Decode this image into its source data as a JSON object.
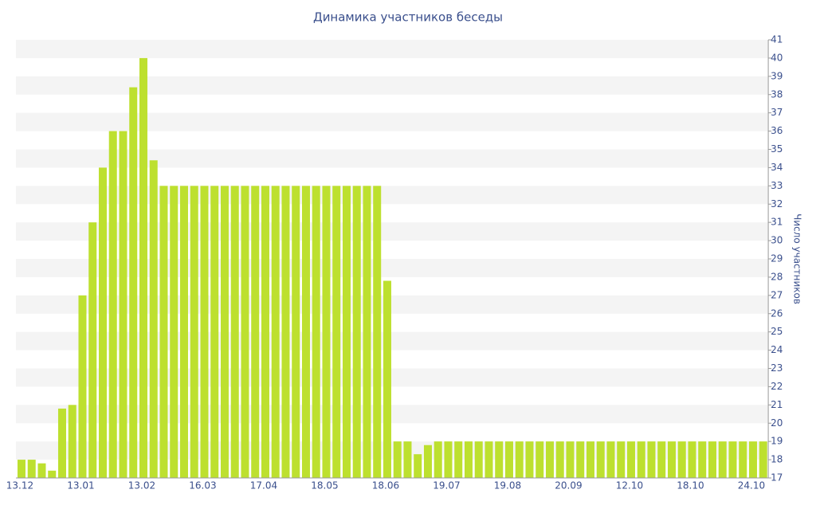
{
  "chart_data": {
    "type": "bar",
    "title": "Динамика участников беседы",
    "y_label": "Число участников",
    "categories": [
      "13.12",
      null,
      null,
      null,
      null,
      null,
      "13.01",
      null,
      null,
      null,
      null,
      null,
      "13.02",
      null,
      null,
      null,
      null,
      null,
      "16.03",
      null,
      null,
      null,
      null,
      null,
      "17.04",
      null,
      null,
      null,
      null,
      null,
      "18.05",
      null,
      null,
      null,
      null,
      null,
      "18.06",
      null,
      null,
      null,
      null,
      null,
      "19.07",
      null,
      null,
      null,
      null,
      null,
      "19.08",
      null,
      null,
      null,
      null,
      null,
      "20.09",
      null,
      null,
      null,
      null,
      null,
      "12.10",
      null,
      null,
      null,
      null,
      null,
      "18.10",
      null,
      null,
      null,
      null,
      null,
      "24.10",
      null
    ],
    "values": [
      18,
      18,
      17.8,
      17.4,
      20.8,
      21,
      27,
      31,
      34,
      36,
      36,
      38.4,
      40,
      34.4,
      33,
      33,
      33,
      33,
      33,
      33,
      33,
      33,
      33,
      33,
      33,
      33,
      33,
      33,
      33,
      33,
      33,
      33,
      33,
      33,
      33,
      33,
      27.8,
      19,
      19,
      18.3,
      18.8,
      19,
      19,
      19,
      19,
      19,
      19,
      19,
      19,
      19,
      19,
      19,
      19,
      19,
      19,
      19,
      19,
      19,
      19,
      19,
      19,
      19,
      19,
      19,
      19,
      19,
      19,
      19,
      19,
      19,
      19,
      19,
      19,
      19
    ],
    "color": "#bde02f",
    "ylim": [
      17,
      41
    ],
    "yticks": [
      17,
      18,
      19,
      20,
      21,
      22,
      23,
      24,
      25,
      26,
      27,
      28,
      29,
      30,
      31,
      32,
      33,
      34,
      35,
      36,
      37,
      38,
      39,
      40,
      41
    ],
    "grid": true
  }
}
